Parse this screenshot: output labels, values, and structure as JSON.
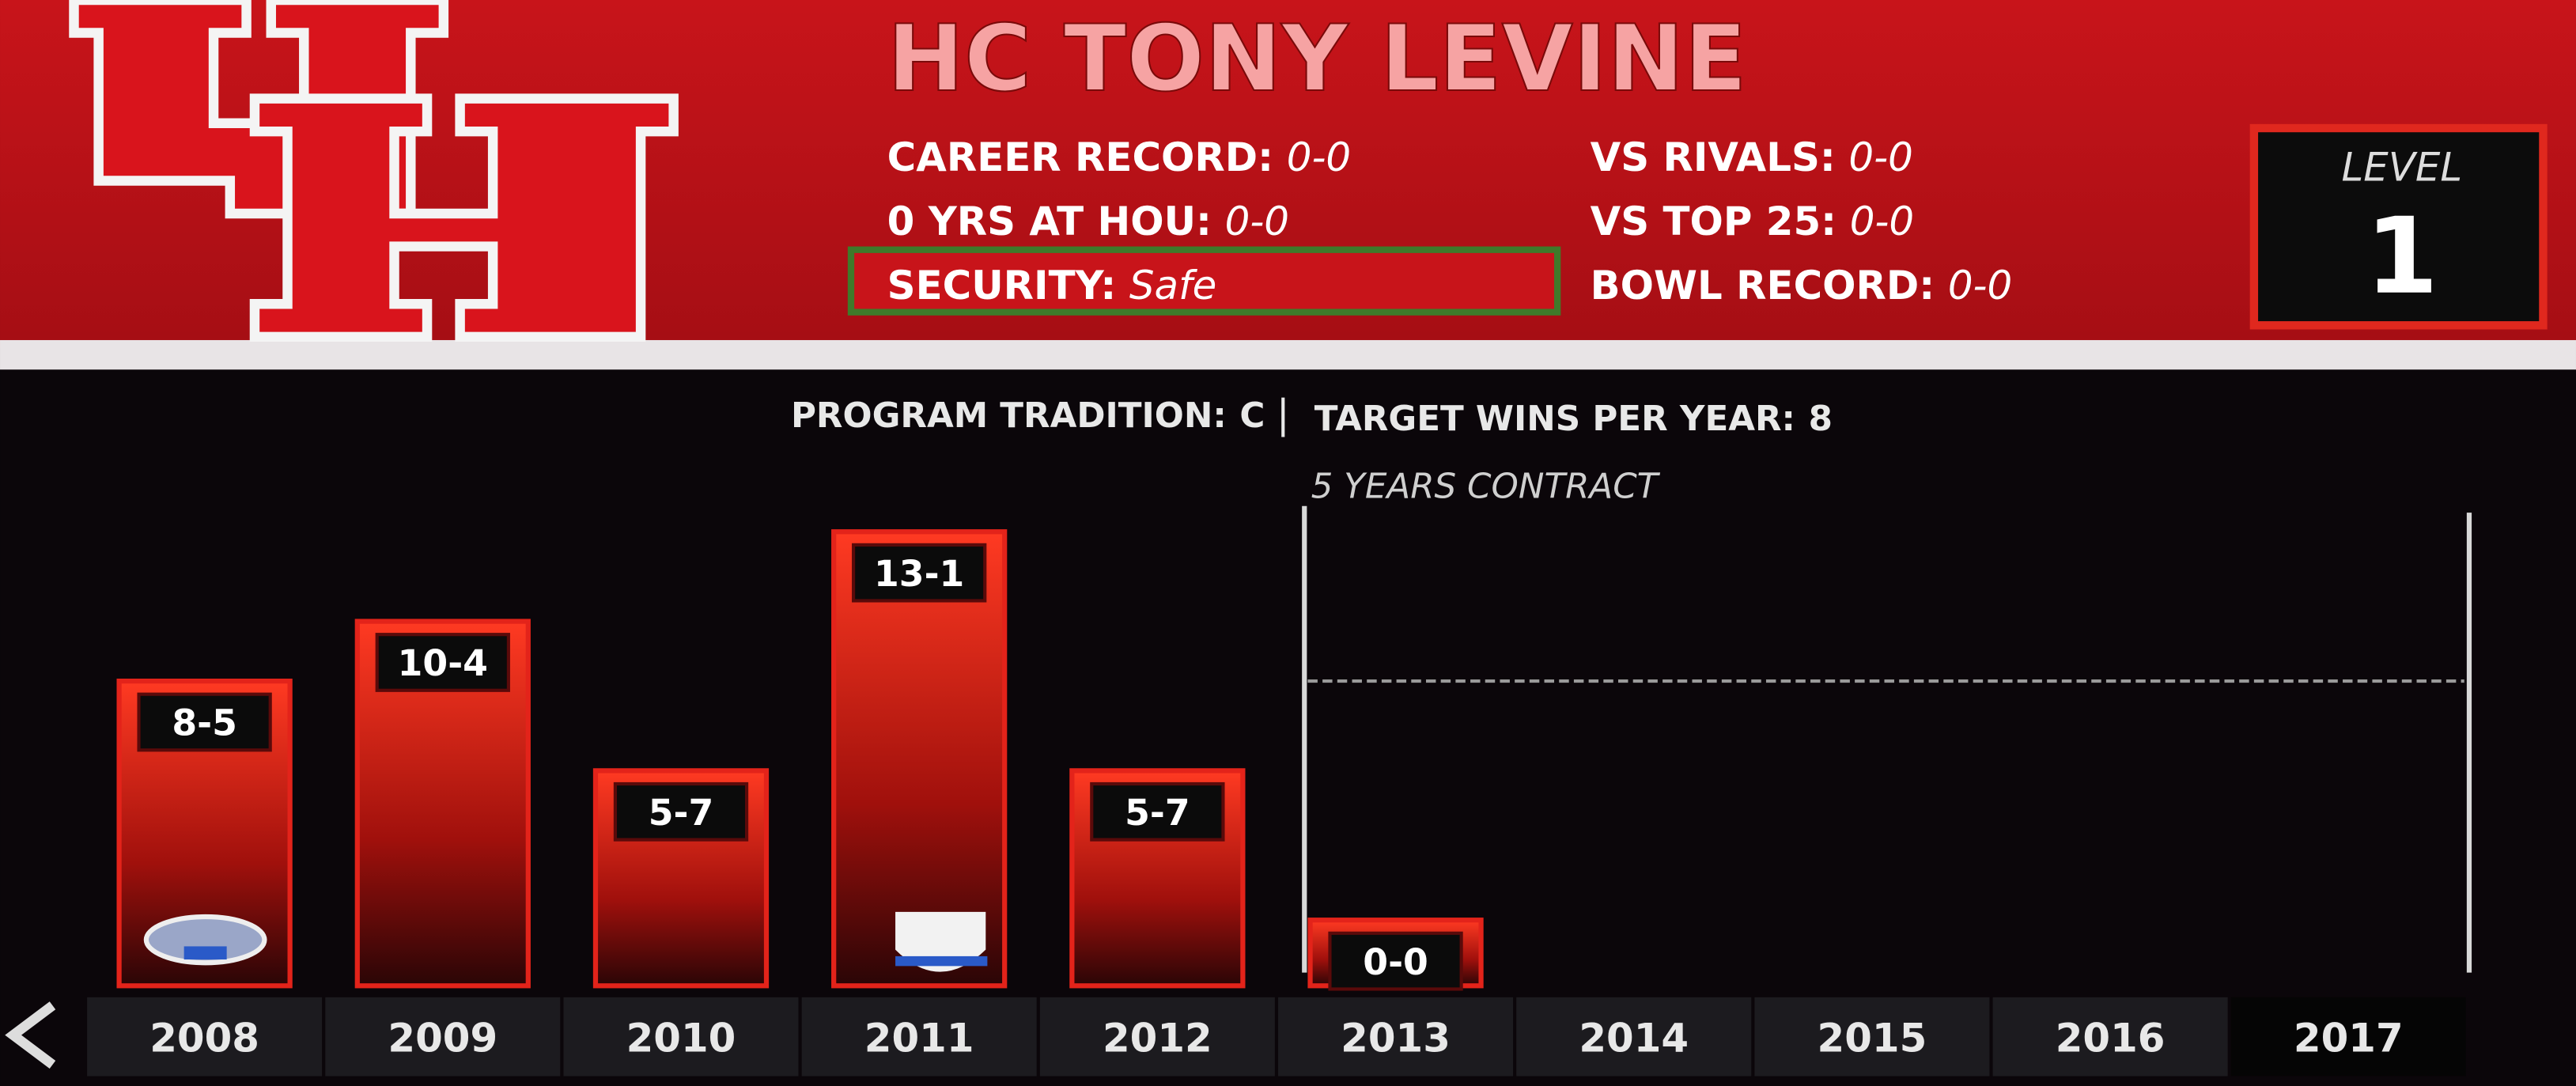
{
  "header": {
    "title": "HC TONY LEVINE",
    "stats_left": [
      {
        "label": "CAREER RECORD:",
        "value": "0-0"
      },
      {
        "label": "0 YRS AT HOU:",
        "value": "0-0"
      },
      {
        "label": "SECURITY:",
        "value": "Safe"
      }
    ],
    "stats_right": [
      {
        "label": "VS RIVALS:",
        "value": "0-0"
      },
      {
        "label": "VS TOP 25:",
        "value": "0-0"
      },
      {
        "label": "BOWL RECORD:",
        "value": "0-0"
      }
    ],
    "level_label": "LEVEL",
    "level": 1,
    "tradition_label": "PROGRAM TRADITION:",
    "tradition": "C"
  },
  "chart_data": {
    "type": "bar",
    "categories": [
      "2008",
      "2009",
      "2010",
      "2011",
      "2012",
      "2013",
      "2014",
      "2015",
      "2016",
      "2017"
    ],
    "values": [
      8,
      10,
      5,
      13,
      5,
      0,
      null,
      null,
      null,
      null
    ],
    "value_labels": [
      "8-5",
      "10-4",
      "5-7",
      "13-1",
      "5-7",
      "0-0",
      null,
      null,
      null,
      null
    ],
    "color": "#e3231a",
    "ylim": [
      -2.2,
      14.3
    ],
    "target_label": "TARGET WINS PER YEAR:",
    "target_wins": 8,
    "contract_label": "5 YEARS CONTRACT"
  }
}
